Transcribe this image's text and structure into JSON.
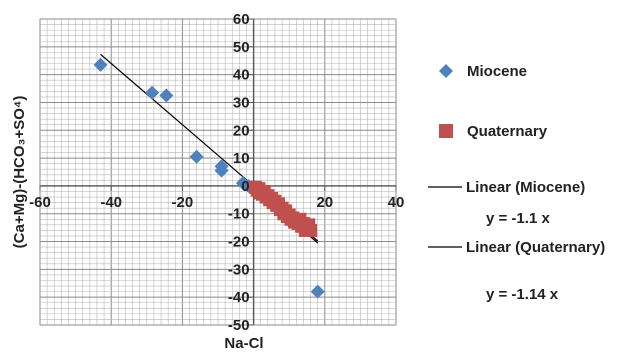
{
  "chart_data": {
    "type": "scatter",
    "xlabel": "Na-Cl",
    "ylabel": "(Ca+Mg)-(HCO₃+SO⁴)",
    "xlim": [
      -60,
      40
    ],
    "ylim": [
      -50,
      60
    ],
    "x_ticks": [
      -60,
      -40,
      -20,
      0,
      20,
      40
    ],
    "y_ticks": [
      -50,
      -40,
      -30,
      -20,
      -10,
      0,
      10,
      20,
      30,
      40,
      50,
      60
    ],
    "grid": true,
    "legend_position": "right",
    "series": [
      {
        "name": "Miocene",
        "marker": "diamond",
        "color": "#4f81bd",
        "points": [
          {
            "x": -43,
            "y": 43.5
          },
          {
            "x": -28.5,
            "y": 33.5
          },
          {
            "x": -24.5,
            "y": 32.5
          },
          {
            "x": -16,
            "y": 10.5
          },
          {
            "x": -9,
            "y": 7
          },
          {
            "x": -9,
            "y": 5.5
          },
          {
            "x": -3,
            "y": 1
          },
          {
            "x": -1.5,
            "y": 0
          },
          {
            "x": 18,
            "y": -38
          }
        ]
      },
      {
        "name": "Quaternary",
        "marker": "square",
        "color": "#c0504d",
        "points": [
          {
            "x": 0.5,
            "y": -0.5
          },
          {
            "x": 1,
            "y": -1.5
          },
          {
            "x": 1.5,
            "y": -1
          },
          {
            "x": 2,
            "y": -2.5
          },
          {
            "x": 2.5,
            "y": -3
          },
          {
            "x": 3,
            "y": -2
          },
          {
            "x": 3.5,
            "y": -4
          },
          {
            "x": 4,
            "y": -3.5
          },
          {
            "x": 4.5,
            "y": -5
          },
          {
            "x": 5,
            "y": -4.5
          },
          {
            "x": 5.5,
            "y": -6
          },
          {
            "x": 6,
            "y": -5.5
          },
          {
            "x": 6.5,
            "y": -7
          },
          {
            "x": 7,
            "y": -6.5
          },
          {
            "x": 7.5,
            "y": -8.5
          },
          {
            "x": 8,
            "y": -8
          },
          {
            "x": 8.5,
            "y": -10
          },
          {
            "x": 9,
            "y": -9
          },
          {
            "x": 9.5,
            "y": -11
          },
          {
            "x": 10,
            "y": -10.5
          },
          {
            "x": 10.5,
            "y": -12
          },
          {
            "x": 11,
            "y": -11.5
          },
          {
            "x": 11.5,
            "y": -13
          },
          {
            "x": 12,
            "y": -12.5
          },
          {
            "x": 12.5,
            "y": -13.5
          },
          {
            "x": 13,
            "y": -12
          },
          {
            "x": 13.5,
            "y": -14.5
          },
          {
            "x": 14,
            "y": -13.5
          },
          {
            "x": 14.5,
            "y": -16
          },
          {
            "x": 15,
            "y": -15
          },
          {
            "x": 15.5,
            "y": -14
          },
          {
            "x": 16,
            "y": -16
          }
        ]
      }
    ],
    "trendlines": [
      {
        "name": "Linear (Miocene)",
        "equation": "y = -1.1 x",
        "slope": -1.1,
        "x_range": [
          -43,
          18
        ],
        "color": "#000000"
      },
      {
        "name": "Linear (Quaternary)",
        "equation": "y = -1.14 x",
        "slope": -1.14,
        "x_range": [
          0,
          18
        ],
        "color": "#000000"
      }
    ]
  }
}
